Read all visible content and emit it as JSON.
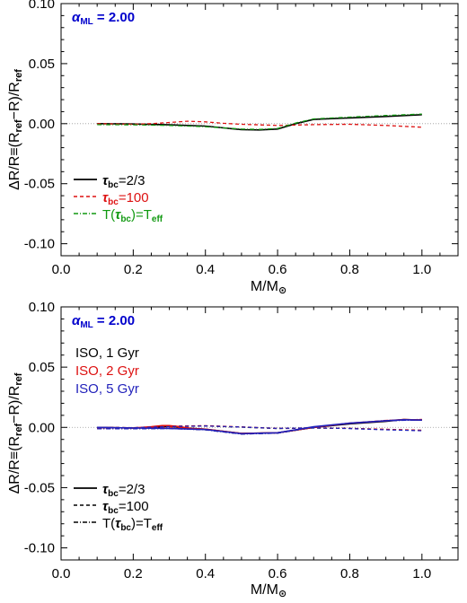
{
  "chart_data": [
    {
      "type": "line",
      "panel": "top",
      "xlabel": "M/M_⊙",
      "ylabel": "ΔR/R≡(R_ref−R)/R_ref",
      "xlim": [
        0.0,
        1.1
      ],
      "ylim": [
        -0.11,
        0.1
      ],
      "x_ticks": [
        "0.0",
        "0.2",
        "0.4",
        "0.6",
        "0.8",
        "1.0"
      ],
      "y_ticks": [
        "-0.10",
        "-0.05",
        "0.00",
        "0.05",
        "0.10"
      ],
      "annotation": "α_ML = 2.00",
      "annotation_color": "#0000cc",
      "zero_line": true,
      "legend_position": "bottom-left",
      "series": [
        {
          "name": "τ_bc=2/3",
          "color": "#000000",
          "style": "solid",
          "x": [
            0.1,
            0.2,
            0.3,
            0.4,
            0.45,
            0.5,
            0.55,
            0.6,
            0.65,
            0.7,
            0.8,
            0.9,
            1.0
          ],
          "y": [
            0.0,
            -0.0003,
            -0.001,
            -0.002,
            -0.0035,
            -0.005,
            -0.0052,
            -0.0045,
            0.0,
            0.0035,
            0.0048,
            0.006,
            0.0075
          ]
        },
        {
          "name": "τ_bc=100",
          "color": "#dd1111",
          "style": "dashed",
          "x": [
            0.1,
            0.2,
            0.25,
            0.3,
            0.35,
            0.4,
            0.45,
            0.5,
            0.6,
            0.7,
            0.8,
            0.9,
            1.0
          ],
          "y": [
            0.0,
            -0.0005,
            0.0,
            0.001,
            0.002,
            0.0015,
            0.0003,
            -0.0005,
            -0.0015,
            -0.0008,
            -0.0005,
            -0.0015,
            -0.003
          ]
        },
        {
          "name": "T(τ_bc)=T_eff",
          "color": "#119911",
          "style": "dashdot",
          "x": [
            0.1,
            0.2,
            0.3,
            0.4,
            0.45,
            0.5,
            0.55,
            0.6,
            0.65,
            0.7,
            0.8,
            0.9,
            1.0
          ],
          "y": [
            -0.0008,
            -0.001,
            -0.0015,
            -0.0025,
            -0.0035,
            -0.0045,
            -0.0048,
            -0.004,
            0.0005,
            0.004,
            0.0055,
            0.0068,
            0.008
          ]
        }
      ]
    },
    {
      "type": "line",
      "panel": "bottom",
      "xlabel": "M/M_⊙",
      "ylabel": "ΔR/R≡(R_ref−R)/R_ref",
      "xlim": [
        0.0,
        1.1
      ],
      "ylim": [
        -0.11,
        0.1
      ],
      "x_ticks": [
        "0.0",
        "0.2",
        "0.4",
        "0.6",
        "0.8",
        "1.0"
      ],
      "y_ticks": [
        "-0.10",
        "-0.05",
        "0.00",
        "0.05",
        "0.10"
      ],
      "annotation": "α_ML = 2.00",
      "annotation_color": "#0000cc",
      "zero_line": true,
      "age_labels": [
        {
          "text": "ISO,   1 Gyr",
          "color": "#000000"
        },
        {
          "text": "ISO,   2 Gyr",
          "color": "#dd1111"
        },
        {
          "text": "ISO,   5 Gyr",
          "color": "#2222bb"
        }
      ],
      "style_legend": [
        {
          "name": "τ_bc=2/3",
          "style": "solid"
        },
        {
          "name": "τ_bc=100",
          "style": "dashed"
        },
        {
          "name": "T(τ_bc)=T_eff",
          "style": "dashdot"
        }
      ],
      "legend_position": "bottom-left",
      "series": [
        {
          "name": "1 Gyr, τ_bc=2/3",
          "color": "#000000",
          "style": "solid",
          "x": [
            0.1,
            0.2,
            0.25,
            0.3,
            0.35,
            0.4,
            0.5,
            0.6,
            0.7,
            0.8,
            0.9,
            0.95,
            1.0
          ],
          "y": [
            0.0,
            -0.0005,
            0.0,
            0.0008,
            -0.0005,
            -0.0015,
            -0.005,
            -0.0045,
            0.0,
            0.003,
            0.005,
            0.0065,
            0.006
          ]
        },
        {
          "name": "1 Gyr, τ_bc=100",
          "color": "#000000",
          "style": "dashed",
          "x": [
            0.1,
            0.2,
            0.3,
            0.4,
            0.5,
            0.6,
            0.7,
            0.8,
            0.9,
            1.0
          ],
          "y": [
            0.0,
            -0.0003,
            0.0008,
            0.0012,
            0.0002,
            -0.001,
            -0.0005,
            -0.0008,
            -0.0018,
            -0.0025
          ]
        },
        {
          "name": "1 Gyr, T(τ_bc)=T_eff",
          "color": "#000000",
          "style": "dashdot",
          "x": [
            0.1,
            0.2,
            0.3,
            0.4,
            0.5,
            0.6,
            0.7,
            0.8,
            0.9,
            1.0
          ],
          "y": [
            -0.001,
            -0.0012,
            -0.0008,
            -0.002,
            -0.0055,
            -0.0048,
            0.0,
            0.003,
            0.0055,
            0.0065
          ]
        },
        {
          "name": "2 Gyr, τ_bc=2/3",
          "color": "#dd1111",
          "style": "solid",
          "x": [
            0.1,
            0.2,
            0.25,
            0.28,
            0.3,
            0.33,
            0.36,
            0.4,
            0.5,
            0.6,
            0.7,
            0.8,
            0.9,
            0.95,
            1.0
          ],
          "y": [
            0.0,
            -0.0005,
            0.0005,
            0.0015,
            0.0015,
            0.0005,
            -0.001,
            -0.0015,
            -0.005,
            -0.0045,
            0.0,
            0.0035,
            0.0055,
            0.0065,
            0.006
          ]
        },
        {
          "name": "2 Gyr, τ_bc=100",
          "color": "#dd1111",
          "style": "dashed",
          "x": [
            0.1,
            0.2,
            0.3,
            0.4,
            0.5,
            0.6,
            0.7,
            0.8,
            0.9,
            1.0
          ],
          "y": [
            0.0,
            -0.0002,
            0.001,
            0.0014,
            0.0004,
            -0.0008,
            -0.0004,
            -0.0008,
            -0.0016,
            -0.0024
          ]
        },
        {
          "name": "2 Gyr, T(τ_bc)=T_eff",
          "color": "#dd1111",
          "style": "dashdot",
          "x": [
            0.1,
            0.2,
            0.3,
            0.4,
            0.5,
            0.6,
            0.7,
            0.8,
            0.9,
            1.0
          ],
          "y": [
            -0.001,
            -0.001,
            0.0005,
            -0.0015,
            -0.005,
            -0.0045,
            0.0003,
            0.0035,
            0.0058,
            0.0066
          ]
        },
        {
          "name": "5 Gyr, τ_bc=2/3",
          "color": "#2222bb",
          "style": "solid",
          "x": [
            0.1,
            0.2,
            0.3,
            0.4,
            0.5,
            0.6,
            0.7,
            0.8,
            0.9,
            0.95,
            1.0
          ],
          "y": [
            0.0,
            -0.0005,
            -0.0008,
            -0.0018,
            -0.0052,
            -0.0045,
            0.0005,
            0.0035,
            0.0055,
            0.0063,
            0.006
          ]
        },
        {
          "name": "5 Gyr, τ_bc=100",
          "color": "#2222bb",
          "style": "dashed",
          "x": [
            0.1,
            0.2,
            0.3,
            0.4,
            0.5,
            0.6,
            0.7,
            0.8,
            0.9,
            1.0
          ],
          "y": [
            0.0,
            -0.0003,
            0.0006,
            0.0012,
            0.0003,
            -0.0008,
            -0.0004,
            -0.001,
            -0.002,
            -0.0028
          ]
        },
        {
          "name": "5 Gyr, T(τ_bc)=T_eff",
          "color": "#2222bb",
          "style": "dashdot",
          "x": [
            0.1,
            0.2,
            0.3,
            0.4,
            0.5,
            0.6,
            0.7,
            0.8,
            0.9,
            1.0
          ],
          "y": [
            -0.0012,
            -0.0012,
            -0.001,
            -0.002,
            -0.0055,
            -0.0048,
            0.0002,
            0.0035,
            0.0055,
            0.0062
          ]
        }
      ]
    }
  ]
}
